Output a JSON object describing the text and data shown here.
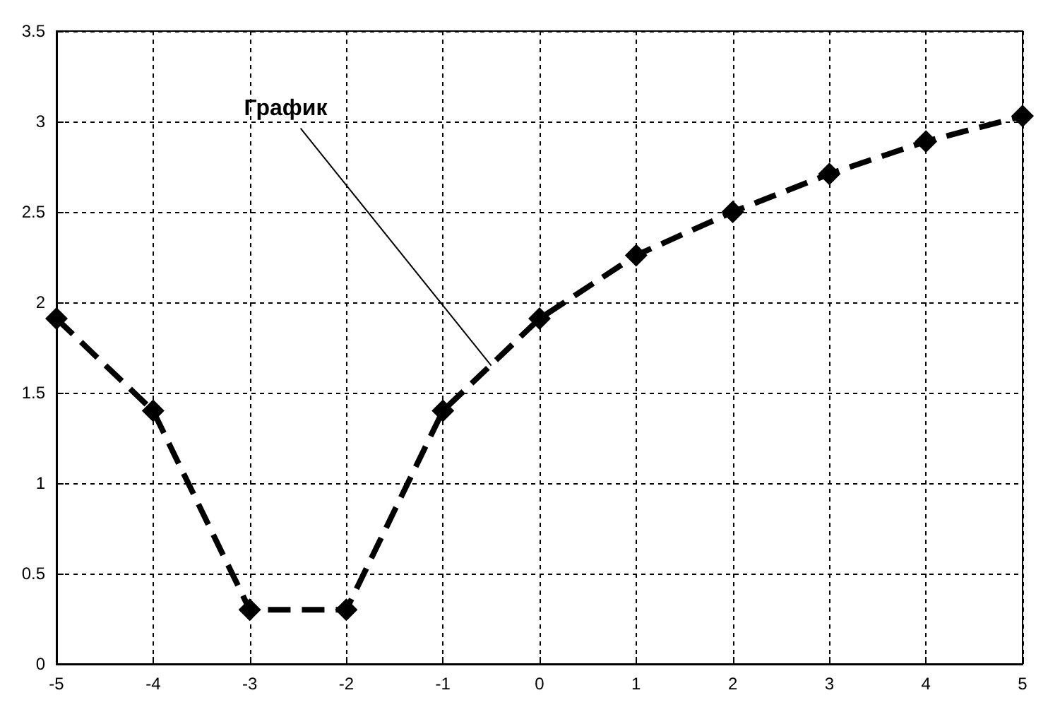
{
  "chart_data": {
    "type": "line",
    "x": [
      -5,
      -4,
      -3,
      -2,
      -1,
      0,
      1,
      2,
      3,
      4,
      5
    ],
    "series": [
      {
        "color": "#000000",
        "values": [
          1.91,
          1.4,
          0.3,
          0.3,
          1.4,
          1.91,
          2.26,
          2.5,
          2.71,
          2.89,
          3.03
        ]
      }
    ],
    "xlim": [
      -5,
      5
    ],
    "xticks": [
      -5,
      -4,
      -3,
      -2,
      -1,
      0,
      1,
      2,
      3,
      4,
      5
    ],
    "ylim": [
      0,
      3.5
    ],
    "yticks": [
      0,
      0.5,
      1,
      1.5,
      2,
      2.5,
      3,
      3.5
    ],
    "grid": true,
    "marker": "diamond",
    "line_style": "dashed",
    "annotations": [
      {
        "text": "График",
        "x": -0.5,
        "y": 1.65
      }
    ]
  }
}
